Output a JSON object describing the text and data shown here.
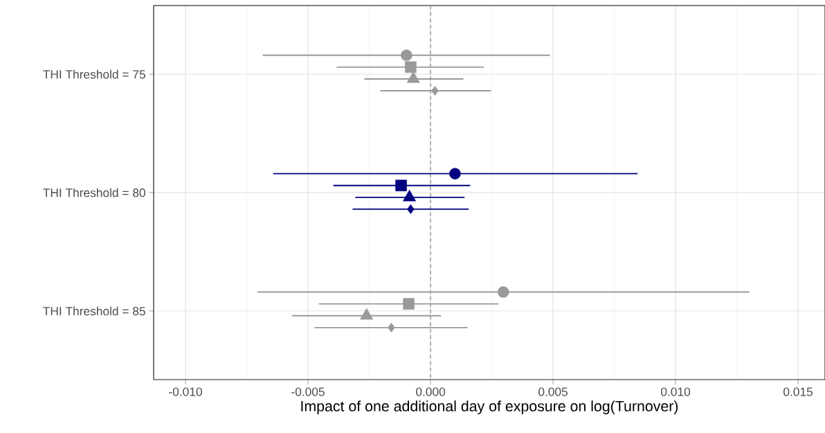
{
  "chart_data": {
    "type": "scatter",
    "orientation": "horizontal",
    "xlabel": "Impact of one additional day of exposure on log(Turnover)",
    "categories": [
      "THI Threshold = 75",
      "THI Threshold = 80",
      "THI Threshold = 85"
    ],
    "xlim": [
      -0.0113,
      0.0161
    ],
    "xticks": [
      {
        "value": -0.01,
        "label": "-0.010"
      },
      {
        "value": -0.005,
        "label": "-0.005"
      },
      {
        "value": 0,
        "label": "0.000"
      },
      {
        "value": 0.005,
        "label": "0.005"
      },
      {
        "value": 0.01,
        "label": "0.010"
      },
      {
        "value": 0.015,
        "label": "0.015"
      }
    ],
    "grid": true,
    "ref_lines": [
      {
        "axis": "x",
        "value": 0,
        "color": "#999999",
        "line_style": "dashed"
      }
    ],
    "series": [
      {
        "marker": "circle",
        "colors": [
          "#999999",
          "#000080",
          "#999999"
        ],
        "values": [
          -0.00098,
          0.001,
          0.00297
        ],
        "errors": [
          [
            -0.00685,
            0.00487
          ],
          [
            -0.00642,
            0.00845
          ],
          [
            -0.00707,
            0.013
          ]
        ]
      },
      {
        "marker": "square",
        "colors": [
          "#999999",
          "#000080",
          "#999999"
        ],
        "values": [
          -0.00081,
          -0.0012,
          -0.00089
        ],
        "errors": [
          [
            -0.00383,
            0.00218
          ],
          [
            -0.00397,
            0.00162
          ],
          [
            -0.00456,
            0.00278
          ]
        ]
      },
      {
        "marker": "triangle",
        "colors": [
          "#999999",
          "#000080",
          "#999999"
        ],
        "values": [
          -0.0007,
          -0.00086,
          -0.00261
        ],
        "errors": [
          [
            -0.0027,
            0.00134
          ],
          [
            -0.00307,
            0.00139
          ],
          [
            -0.00566,
            0.00043
          ]
        ]
      },
      {
        "marker": "diamond",
        "colors": [
          "#999999",
          "#000080",
          "#999999"
        ],
        "values": [
          0.00018,
          -0.00081,
          -0.0016
        ],
        "errors": [
          [
            -0.00205,
            0.00247
          ],
          [
            -0.00318,
            0.00156
          ],
          [
            -0.00473,
            0.00151
          ]
        ]
      }
    ]
  }
}
